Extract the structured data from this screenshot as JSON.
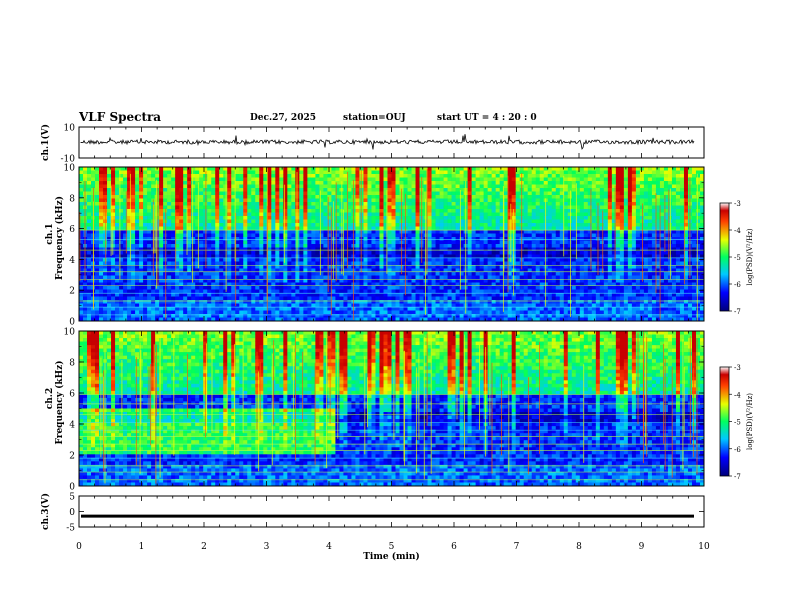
{
  "header": {
    "title": "VLF Spectra",
    "date": "Dec.27, 2025",
    "station": "station=OUJ",
    "start": "start  UT  =   4  : 20 : 0"
  },
  "chart_data": {
    "type": "heatmap",
    "title": "VLF Spectra",
    "xlabel": "Time  (min)",
    "xlim": [
      0,
      10
    ],
    "xticks": [
      "0",
      "1",
      "2",
      "3",
      "4",
      "5",
      "6",
      "7",
      "8",
      "9",
      "10"
    ],
    "panels": [
      {
        "name": "ch.1(V)",
        "type": "line",
        "ylabel": "ch.1(V)",
        "ylim": [
          -10,
          10
        ],
        "yticks": [
          "10",
          "-10"
        ],
        "level": 0
      },
      {
        "name": "ch.1 spectrogram",
        "type": "heatmap",
        "ylabel_top": "ch.1",
        "ylabel": "Frequency  (kHz)",
        "ylim": [
          0,
          10
        ],
        "yticks": [
          "0",
          "2",
          "4",
          "6",
          "8",
          "10"
        ],
        "colorbar": {
          "label": "log(PSD)(V²/Hz)",
          "range": [
            -7,
            -3
          ],
          "ticks": [
            "-3",
            "-4",
            "-5",
            "-6",
            "-7"
          ]
        }
      },
      {
        "name": "ch.2 spectrogram",
        "type": "heatmap",
        "ylabel_top": "ch.2",
        "ylabel": "Frequency  (kHz)",
        "ylim": [
          0,
          10
        ],
        "yticks": [
          "0",
          "2",
          "4",
          "6",
          "8",
          "10"
        ],
        "colorbar": {
          "label": "log(PSD)(V²/Hz)",
          "range": [
            -7,
            -3
          ],
          "ticks": [
            "-3",
            "-4",
            "-5",
            "-6",
            "-7"
          ]
        }
      },
      {
        "name": "ch.3(V)",
        "type": "line",
        "ylabel": "ch.3(V)",
        "ylim": [
          -5,
          5
        ],
        "yticks": [
          "5",
          "0",
          "-5"
        ],
        "level": -1.5
      }
    ],
    "ch2_enhanced_band_end_min": 4.1,
    "ch2_enhanced_band_khz": [
      [
        2.2,
        5.2
      ]
    ]
  }
}
